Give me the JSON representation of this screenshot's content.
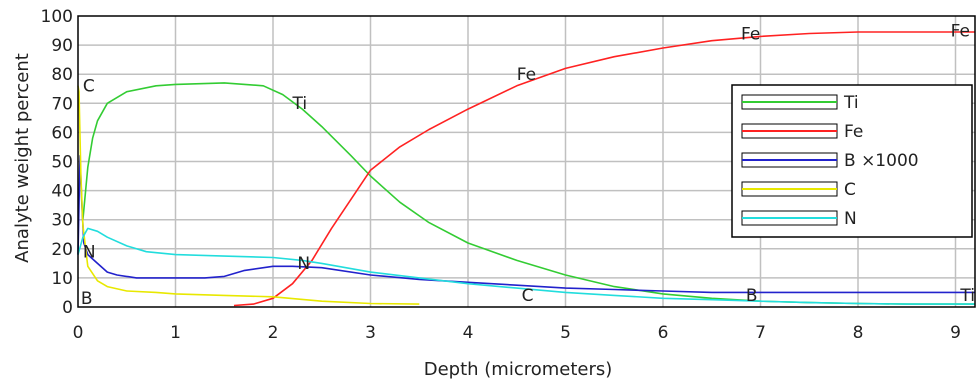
{
  "chart_data": {
    "type": "line",
    "title": "",
    "xlabel": "Depth (micrometers)",
    "ylabel": "Analyte weight percent",
    "xlim": [
      0,
      9.2
    ],
    "ylim": [
      0,
      100
    ],
    "x_ticks": [
      "0",
      "1",
      "2",
      "3",
      "4",
      "5",
      "6",
      "7",
      "8",
      "9"
    ],
    "y_ticks": [
      "0",
      "10",
      "20",
      "30",
      "40",
      "50",
      "60",
      "70",
      "80",
      "90",
      "100"
    ],
    "grid": true,
    "legend_position": "right",
    "series": [
      {
        "name": "Ti",
        "color": "#33cc33",
        "points": [
          [
            0.05,
            30
          ],
          [
            0.1,
            48
          ],
          [
            0.15,
            58
          ],
          [
            0.2,
            64
          ],
          [
            0.3,
            70
          ],
          [
            0.5,
            74
          ],
          [
            0.8,
            76
          ],
          [
            1.0,
            76.5
          ],
          [
            1.5,
            77
          ],
          [
            1.9,
            76
          ],
          [
            2.1,
            73
          ],
          [
            2.3,
            68
          ],
          [
            2.5,
            62
          ],
          [
            2.8,
            52
          ],
          [
            3.0,
            45
          ],
          [
            3.3,
            36
          ],
          [
            3.6,
            29
          ],
          [
            4.0,
            22
          ],
          [
            4.5,
            16
          ],
          [
            5.0,
            11
          ],
          [
            5.5,
            7
          ],
          [
            6.0,
            4.5
          ],
          [
            6.5,
            3
          ],
          [
            7.0,
            2
          ],
          [
            7.5,
            1.5
          ],
          [
            8.0,
            1.2
          ],
          [
            8.5,
            1
          ],
          [
            9.2,
            1
          ]
        ]
      },
      {
        "name": "Fe",
        "color": "#ff2222",
        "points": [
          [
            1.6,
            0.5
          ],
          [
            1.8,
            1
          ],
          [
            2.0,
            3
          ],
          [
            2.2,
            8
          ],
          [
            2.4,
            16
          ],
          [
            2.6,
            27
          ],
          [
            2.8,
            37
          ],
          [
            3.0,
            47
          ],
          [
            3.3,
            55
          ],
          [
            3.6,
            61
          ],
          [
            4.0,
            68
          ],
          [
            4.5,
            76
          ],
          [
            5.0,
            82
          ],
          [
            5.5,
            86
          ],
          [
            6.0,
            89
          ],
          [
            6.5,
            91.5
          ],
          [
            7.0,
            93
          ],
          [
            7.5,
            94
          ],
          [
            8.0,
            94.5
          ],
          [
            8.5,
            94.5
          ],
          [
            9.2,
            94.5
          ]
        ]
      },
      {
        "name": "B ×1000",
        "color": "#2222cc",
        "points": [
          [
            0.0,
            18
          ],
          [
            0.02,
            52
          ],
          [
            0.04,
            35
          ],
          [
            0.06,
            22
          ],
          [
            0.1,
            18
          ],
          [
            0.2,
            15
          ],
          [
            0.3,
            12
          ],
          [
            0.4,
            11
          ],
          [
            0.6,
            10
          ],
          [
            0.8,
            10
          ],
          [
            1.0,
            10
          ],
          [
            1.3,
            10
          ],
          [
            1.5,
            10.5
          ],
          [
            1.7,
            12.5
          ],
          [
            2.0,
            14
          ],
          [
            2.2,
            14
          ],
          [
            2.5,
            13.5
          ],
          [
            3.0,
            11
          ],
          [
            3.5,
            9.5
          ],
          [
            4.0,
            8.5
          ],
          [
            4.5,
            7.5
          ],
          [
            5.0,
            6.5
          ],
          [
            5.5,
            6
          ],
          [
            6.0,
            5.5
          ],
          [
            6.5,
            5
          ],
          [
            7.0,
            5
          ],
          [
            7.5,
            5
          ],
          [
            8.0,
            5
          ],
          [
            8.5,
            5
          ],
          [
            9.2,
            5
          ]
        ]
      },
      {
        "name": "C",
        "color": "#e8e800",
        "points": [
          [
            0.0,
            76
          ],
          [
            0.01,
            74
          ],
          [
            0.03,
            45
          ],
          [
            0.05,
            28
          ],
          [
            0.1,
            14
          ],
          [
            0.2,
            9
          ],
          [
            0.3,
            7
          ],
          [
            0.5,
            5.5
          ],
          [
            0.8,
            5
          ],
          [
            1.0,
            4.5
          ],
          [
            1.5,
            4
          ],
          [
            2.0,
            3.5
          ],
          [
            2.5,
            2
          ],
          [
            3.0,
            1.2
          ],
          [
            3.5,
            1
          ]
        ]
      },
      {
        "name": "N",
        "color": "#22dddd",
        "points": [
          [
            0.0,
            18
          ],
          [
            0.05,
            24
          ],
          [
            0.1,
            27
          ],
          [
            0.2,
            26
          ],
          [
            0.3,
            24
          ],
          [
            0.5,
            21
          ],
          [
            0.7,
            19
          ],
          [
            1.0,
            18
          ],
          [
            1.5,
            17.5
          ],
          [
            2.0,
            17
          ],
          [
            2.3,
            16
          ],
          [
            2.5,
            15
          ],
          [
            3.0,
            12
          ],
          [
            3.5,
            10
          ],
          [
            4.0,
            8
          ],
          [
            4.5,
            6.5
          ],
          [
            5.0,
            5
          ],
          [
            5.5,
            4
          ],
          [
            6.0,
            3
          ],
          [
            6.5,
            2.5
          ],
          [
            7.0,
            2
          ],
          [
            7.5,
            1.5
          ],
          [
            8.0,
            1.2
          ],
          [
            8.5,
            1
          ],
          [
            9.2,
            1
          ]
        ]
      }
    ],
    "annotations": [
      {
        "text": "C",
        "x": 0.05,
        "y": 74
      },
      {
        "text": "Ti",
        "x": 2.2,
        "y": 68
      },
      {
        "text": "Fe",
        "x": 4.5,
        "y": 78
      },
      {
        "text": "Fe",
        "x": 6.8,
        "y": 92
      },
      {
        "text": "Fe",
        "x": 8.95,
        "y": 93
      },
      {
        "text": "N",
        "x": 0.05,
        "y": 17
      },
      {
        "text": "N",
        "x": 2.25,
        "y": 13
      },
      {
        "text": "B",
        "x": 0.03,
        "y": 1
      },
      {
        "text": "C",
        "x": 4.55,
        "y": 2
      },
      {
        "text": "B",
        "x": 6.85,
        "y": 2
      },
      {
        "text": "Ti",
        "x": 9.05,
        "y": 2
      }
    ]
  }
}
